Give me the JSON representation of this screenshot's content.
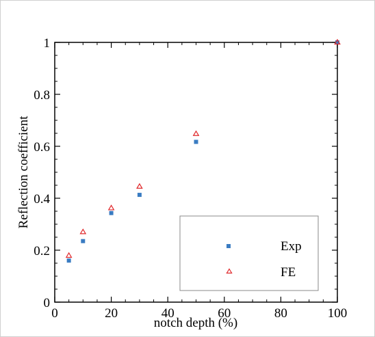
{
  "chart_data": {
    "type": "scatter",
    "title": "",
    "xlabel": "notch depth (%)",
    "ylabel": "Reflection coefficient",
    "xlim": [
      0,
      100
    ],
    "ylim": [
      0,
      1
    ],
    "xticks": [
      "0",
      "20",
      "40",
      "60",
      "80",
      "100"
    ],
    "yticks": [
      "0",
      "0.2",
      "0.4",
      "0.6",
      "0.8",
      "1"
    ],
    "grid": false,
    "legend_position": "bottom-right",
    "series": [
      {
        "name": "Exp",
        "marker": "square",
        "color": "#3a7cc2",
        "x": [
          5,
          10,
          20,
          30,
          50,
          100
        ],
        "y": [
          0.16,
          0.235,
          0.343,
          0.413,
          0.617,
          1.0
        ]
      },
      {
        "name": "FE",
        "marker": "triangle",
        "color": "#e0282b",
        "x": [
          5,
          10,
          20,
          30,
          50,
          100
        ],
        "y": [
          0.179,
          0.27,
          0.362,
          0.445,
          0.648,
          1.0
        ]
      }
    ]
  }
}
